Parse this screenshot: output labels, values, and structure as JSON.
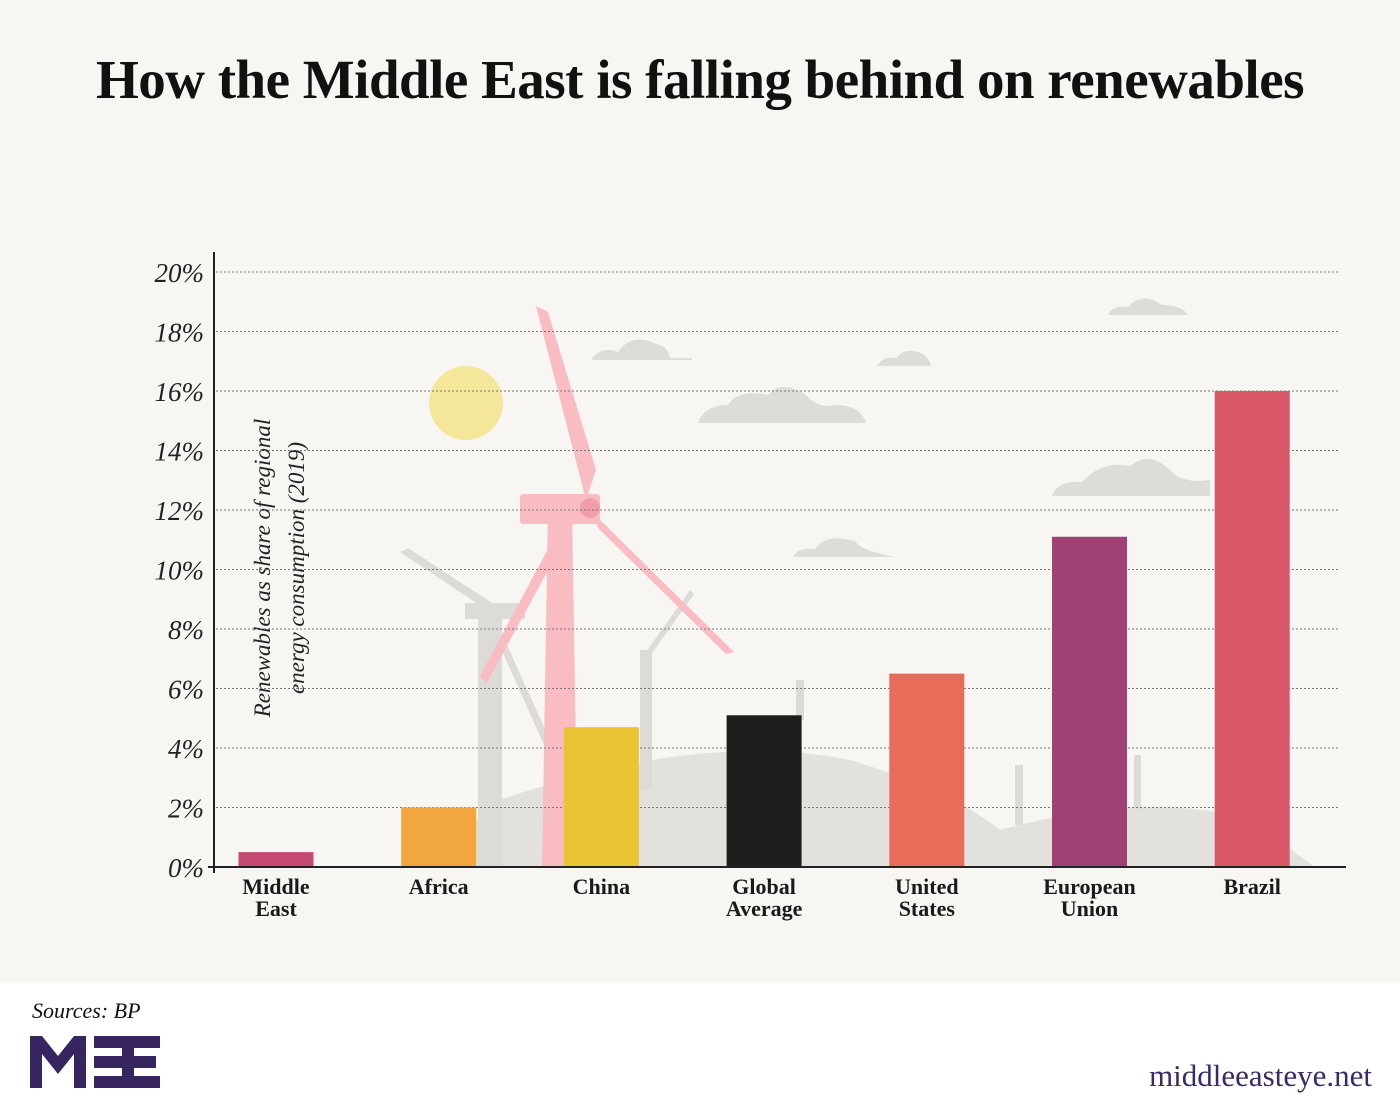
{
  "chart_data": {
    "type": "bar",
    "title": "How the Middle East is falling behind on renewables",
    "ylabel": "Renewables as share of regional energy consumption (2019)",
    "ylabel_lines": [
      "Renewables as share of regional",
      "energy consumption (2019)"
    ],
    "ylim": [
      0,
      20
    ],
    "yticks": [
      "0%",
      "2%",
      "4%",
      "6%",
      "8%",
      "10%",
      "12%",
      "14%",
      "16%",
      "18%",
      "20%"
    ],
    "grid": true,
    "categories": [
      [
        "Middle",
        "East"
      ],
      [
        "Africa"
      ],
      [
        "China"
      ],
      [
        "Global",
        "Average"
      ],
      [
        "United",
        "States"
      ],
      [
        "European",
        "Union"
      ],
      [
        "Brazil"
      ]
    ],
    "values": [
      0.5,
      2.0,
      4.7,
      5.1,
      6.5,
      11.1,
      16.0
    ],
    "colors": [
      "#c44a74",
      "#f2a63f",
      "#ebc436",
      "#1e1e1c",
      "#e86c5a",
      "#a04176",
      "#d95868"
    ]
  },
  "footer": {
    "sources": "Sources: BP",
    "logo_text": "MEE",
    "site": "middleeasteye.net",
    "brand_color": "#36255f"
  }
}
